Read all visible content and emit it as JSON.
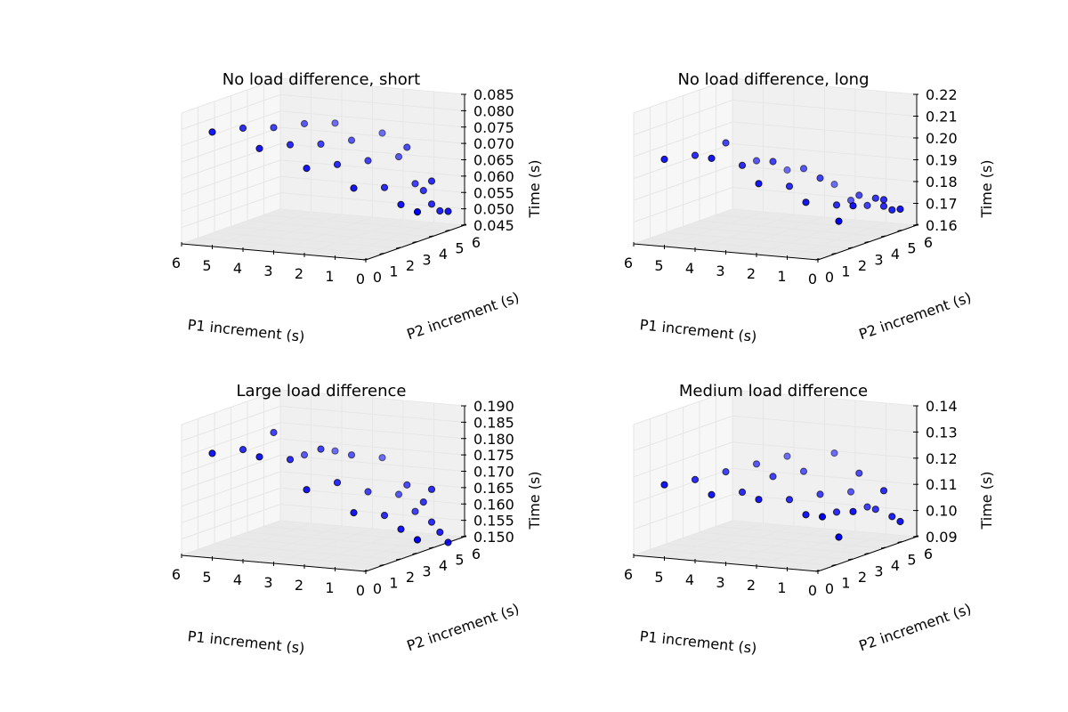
{
  "chart_data": [
    {
      "type": "scatter",
      "projection": "3d",
      "title": "No load difference, short",
      "xlabel": "P1 increment (s)",
      "ylabel": "P2 increment (s)",
      "zlabel": "Time (s)",
      "xticks": [
        "6",
        "5",
        "4",
        "3",
        "2",
        "1",
        "0"
      ],
      "yticks": [
        "6",
        "5",
        "4",
        "3",
        "2",
        "1",
        "0"
      ],
      "zticks": [
        "0.045",
        "0.050",
        "0.055",
        "0.060",
        "0.065",
        "0.070",
        "0.075",
        "0.080",
        "0.085"
      ],
      "xlim": [
        0,
        6
      ],
      "ylim": [
        0,
        6
      ],
      "zlim": [
        0.045,
        0.085
      ],
      "grid": true,
      "marker_color": "#0000ff",
      "points": [
        {
          "p1": 5,
          "p2": 0,
          "time": 0.08
        },
        {
          "p1": 4,
          "p2": 0,
          "time": 0.082
        },
        {
          "p1": 3,
          "p2": 0,
          "time": 0.083
        },
        {
          "p1": 2,
          "p2": 0,
          "time": 0.085
        },
        {
          "p1": 1,
          "p2": 0,
          "time": 0.086
        },
        {
          "p1": 4,
          "p2": 1,
          "time": 0.074
        },
        {
          "p1": 3,
          "p2": 1,
          "time": 0.076
        },
        {
          "p1": 2,
          "p2": 1,
          "time": 0.077
        },
        {
          "p1": 1,
          "p2": 1,
          "time": 0.079
        },
        {
          "p1": 0,
          "p2": 1,
          "time": 0.082
        },
        {
          "p1": 3,
          "p2": 2,
          "time": 0.067
        },
        {
          "p1": 2,
          "p2": 2,
          "time": 0.069
        },
        {
          "p1": 1,
          "p2": 2,
          "time": 0.071
        },
        {
          "p1": 0,
          "p2": 2,
          "time": 0.073
        },
        {
          "p1": 2,
          "p2": 3,
          "time": 0.06
        },
        {
          "p1": 1,
          "p2": 3,
          "time": 0.061
        },
        {
          "p1": 0,
          "p2": 3,
          "time": 0.063
        },
        {
          "p1": 0,
          "p2": 2.5,
          "time": 0.075
        },
        {
          "p1": 1,
          "p2": 4,
          "time": 0.054
        },
        {
          "p1": 0,
          "p2": 4,
          "time": 0.055
        },
        {
          "p1": 0,
          "p2": 3.5,
          "time": 0.06
        },
        {
          "p1": 1,
          "p2": 5,
          "time": 0.05
        },
        {
          "p1": 0,
          "p2": 5,
          "time": 0.051
        },
        {
          "p1": 0,
          "p2": 4.5,
          "time": 0.052
        },
        {
          "p1": 0,
          "p2": 4,
          "time": 0.062
        }
      ]
    },
    {
      "type": "scatter",
      "projection": "3d",
      "title": "No load difference, long",
      "xlabel": "P1 increment (s)",
      "ylabel": "P2 increment (s)",
      "zlabel": "Time (s)",
      "xticks": [
        "6",
        "5",
        "4",
        "3",
        "2",
        "1",
        "0"
      ],
      "yticks": [
        "6",
        "5",
        "4",
        "3",
        "2",
        "1",
        "0"
      ],
      "zticks": [
        "0.16",
        "0.17",
        "0.18",
        "0.19",
        "0.20",
        "0.21",
        "0.22"
      ],
      "xlim": [
        0,
        6
      ],
      "ylim": [
        0,
        6
      ],
      "zlim": [
        0.16,
        0.22
      ],
      "grid": true,
      "marker_color": "#0000ff",
      "points": [
        {
          "p1": 5,
          "p2": 0,
          "time": 0.2
        },
        {
          "p1": 4,
          "p2": 0,
          "time": 0.203
        },
        {
          "p1": 3,
          "p2": 0,
          "time": 0.21
        },
        {
          "p1": 2,
          "p2": 0,
          "time": 0.203
        },
        {
          "p1": 1,
          "p2": 0,
          "time": 0.2
        },
        {
          "p1": 4,
          "p2": 1,
          "time": 0.199
        },
        {
          "p1": 3,
          "p2": 1,
          "time": 0.197
        },
        {
          "p1": 2,
          "p2": 1,
          "time": 0.2
        },
        {
          "p1": 1,
          "p2": 1,
          "time": 0.198
        },
        {
          "p1": 0,
          "p2": 1,
          "time": 0.192
        },
        {
          "p1": 3,
          "p2": 2,
          "time": 0.186
        },
        {
          "p1": 2,
          "p2": 2,
          "time": 0.186
        },
        {
          "p1": 1,
          "p2": 2,
          "time": 0.191
        },
        {
          "p1": 0,
          "p2": 2,
          "time": 0.182
        },
        {
          "p1": 2,
          "p2": 3,
          "time": 0.176
        },
        {
          "p1": 1,
          "p2": 3,
          "time": 0.176
        },
        {
          "p1": 0,
          "p2": 3,
          "time": 0.177
        },
        {
          "p1": 0,
          "p2": 2.5,
          "time": 0.183
        },
        {
          "p1": 1,
          "p2": 4,
          "time": 0.173
        },
        {
          "p1": 0,
          "p2": 4,
          "time": 0.174
        },
        {
          "p1": 0,
          "p2": 3.5,
          "time": 0.179
        },
        {
          "p1": 2,
          "p2": 5,
          "time": 0.162
        },
        {
          "p1": 0,
          "p2": 5,
          "time": 0.17
        },
        {
          "p1": 0,
          "p2": 4.5,
          "time": 0.171
        },
        {
          "p1": 0,
          "p2": 4,
          "time": 0.177
        }
      ]
    },
    {
      "type": "scatter",
      "projection": "3d",
      "title": "Large load difference",
      "xlabel": "P1 increment (s)",
      "ylabel": "P2 increment (s)",
      "zlabel": "Time (s)",
      "xticks": [
        "6",
        "5",
        "4",
        "3",
        "2",
        "1",
        "0"
      ],
      "yticks": [
        "6",
        "5",
        "4",
        "3",
        "2",
        "1",
        "0"
      ],
      "zticks": [
        "0.150",
        "0.155",
        "0.160",
        "0.165",
        "0.170",
        "0.175",
        "0.180",
        "0.185",
        "0.190"
      ],
      "xlim": [
        0,
        6
      ],
      "ylim": [
        0,
        6
      ],
      "zlim": [
        0.15,
        0.19
      ],
      "grid": true,
      "marker_color": "#0000ff",
      "points": [
        {
          "p1": 5,
          "p2": 0,
          "time": 0.182
        },
        {
          "p1": 4,
          "p2": 0,
          "time": 0.184
        },
        {
          "p1": 3,
          "p2": 0,
          "time": 0.19
        },
        {
          "p1": 2,
          "p2": 0,
          "time": 0.184
        },
        {
          "p1": 1,
          "p2": 0,
          "time": 0.186
        },
        {
          "p1": 4,
          "p2": 1,
          "time": 0.18
        },
        {
          "p1": 3,
          "p2": 1,
          "time": 0.18
        },
        {
          "p1": 2,
          "p2": 1,
          "time": 0.184
        },
        {
          "p1": 1,
          "p2": 1,
          "time": 0.183
        },
        {
          "p1": 0,
          "p2": 1,
          "time": 0.183
        },
        {
          "p1": 3,
          "p2": 2,
          "time": 0.169
        },
        {
          "p1": 2,
          "p2": 2,
          "time": 0.172
        },
        {
          "p1": 1,
          "p2": 2,
          "time": 0.17
        },
        {
          "p1": 0,
          "p2": 2,
          "time": 0.17
        },
        {
          "p1": 2,
          "p2": 3,
          "time": 0.161
        },
        {
          "p1": 1,
          "p2": 3,
          "time": 0.161
        },
        {
          "p1": 0,
          "p2": 3,
          "time": 0.163
        },
        {
          "p1": 0,
          "p2": 2.5,
          "time": 0.172
        },
        {
          "p1": 1,
          "p2": 4,
          "time": 0.155
        },
        {
          "p1": 0,
          "p2": 4,
          "time": 0.158
        },
        {
          "p1": 0,
          "p2": 3.5,
          "time": 0.165
        },
        {
          "p1": 1,
          "p2": 5,
          "time": 0.15
        },
        {
          "p1": 0,
          "p2": 5,
          "time": 0.15
        },
        {
          "p1": 0,
          "p2": 4.5,
          "time": 0.154
        },
        {
          "p1": 0,
          "p2": 4,
          "time": 0.168
        }
      ]
    },
    {
      "type": "scatter",
      "projection": "3d",
      "title": "Medium load difference",
      "xlabel": "P1 increment (s)",
      "ylabel": "P2 increment (s)",
      "zlabel": "Time (s)",
      "xticks": [
        "6",
        "5",
        "4",
        "3",
        "2",
        "1",
        "0"
      ],
      "yticks": [
        "6",
        "5",
        "4",
        "3",
        "2",
        "1",
        "0"
      ],
      "zticks": [
        "0.09",
        "0.10",
        "0.11",
        "0.12",
        "0.13",
        "0.14"
      ],
      "xlim": [
        0,
        6
      ],
      "ylim": [
        0,
        6
      ],
      "zlim": [
        0.09,
        0.14
      ],
      "grid": true,
      "marker_color": "#0000ff",
      "points": [
        {
          "p1": 5,
          "p2": 0,
          "time": 0.118
        },
        {
          "p1": 4,
          "p2": 0,
          "time": 0.121
        },
        {
          "p1": 3,
          "p2": 0,
          "time": 0.125
        },
        {
          "p1": 2,
          "p2": 0,
          "time": 0.129
        },
        {
          "p1": 1,
          "p2": 0,
          "time": 0.133
        },
        {
          "p1": 4,
          "p2": 1,
          "time": 0.113
        },
        {
          "p1": 3,
          "p2": 1,
          "time": 0.115
        },
        {
          "p1": 2,
          "p2": 1,
          "time": 0.122
        },
        {
          "p1": 1,
          "p2": 1,
          "time": 0.125
        },
        {
          "p1": 0,
          "p2": 1,
          "time": 0.133
        },
        {
          "p1": 3,
          "p2": 2,
          "time": 0.11
        },
        {
          "p1": 2,
          "p2": 2,
          "time": 0.111
        },
        {
          "p1": 1,
          "p2": 2,
          "time": 0.114
        },
        {
          "p1": 0,
          "p2": 2,
          "time": 0.116
        },
        {
          "p1": 2,
          "p2": 3,
          "time": 0.103
        },
        {
          "p1": 1,
          "p2": 3,
          "time": 0.105
        },
        {
          "p1": 0,
          "p2": 3,
          "time": 0.108
        },
        {
          "p1": 0,
          "p2": 2.5,
          "time": 0.122
        },
        {
          "p1": 2,
          "p2": 4,
          "time": 0.1
        },
        {
          "p1": 1,
          "p2": 4,
          "time": 0.103
        },
        {
          "p1": 0,
          "p2": 3.5,
          "time": 0.106
        },
        {
          "p1": 2,
          "p2": 5,
          "time": 0.09
        },
        {
          "p1": 0,
          "p2": 5,
          "time": 0.098
        },
        {
          "p1": 0,
          "p2": 4.5,
          "time": 0.101
        },
        {
          "p1": 0,
          "p2": 4,
          "time": 0.112
        }
      ]
    }
  ]
}
